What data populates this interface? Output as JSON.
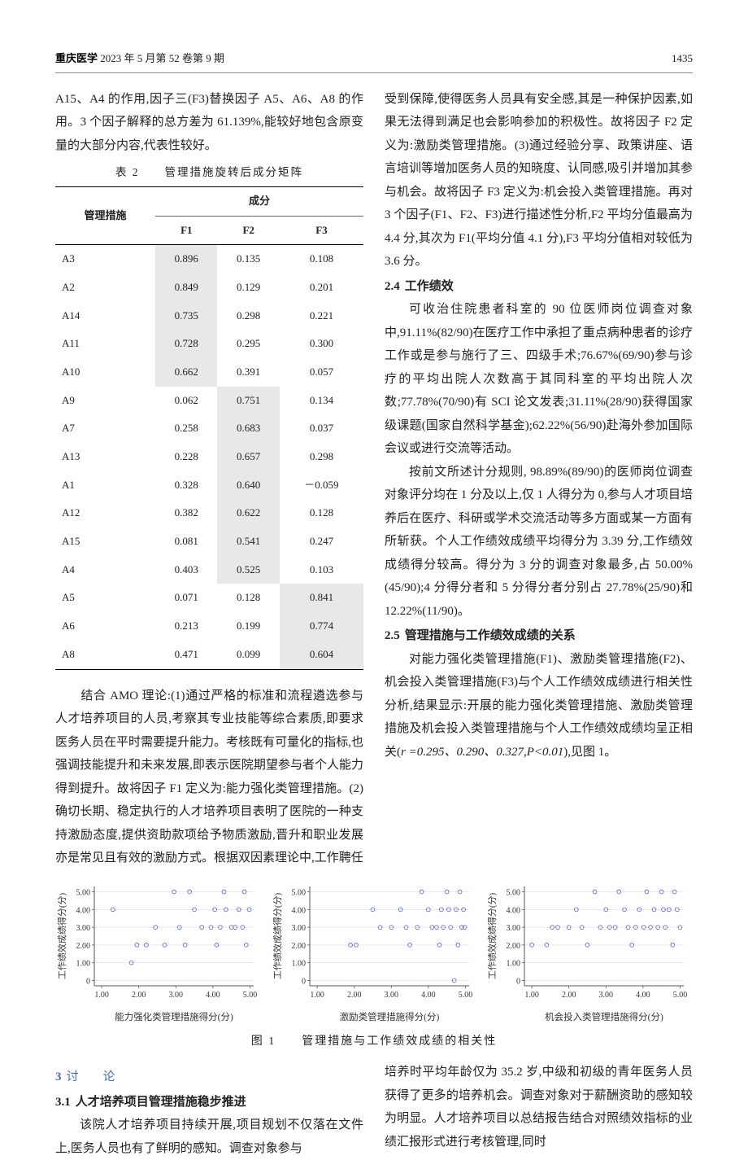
{
  "header": {
    "journal": "重庆医学",
    "issue": "2023 年 5 月第 52 卷第 9 期",
    "page": "1435"
  },
  "leftCol": {
    "intro": "A15、A4 的作用,因子三(F3)替换因子 A5、A6、A8 的作用。3 个因子解释的总方差为 61.139%,能较好地包含原变量的大部分内容,代表性较好。",
    "tableCaption": "表 2　　管理措施旋转后成分矩阵",
    "tableHeaders": {
      "col0": "管理措施",
      "group": "成分",
      "f1": "F1",
      "f2": "F2",
      "f3": "F3"
    },
    "tableRows": [
      {
        "m": "A3",
        "f1": "0.896",
        "f2": "0.135",
        "f3": "0.108",
        "hi": 0
      },
      {
        "m": "A2",
        "f1": "0.849",
        "f2": "0.129",
        "f3": "0.201",
        "hi": 0
      },
      {
        "m": "A14",
        "f1": "0.735",
        "f2": "0.298",
        "f3": "0.221",
        "hi": 0
      },
      {
        "m": "A11",
        "f1": "0.728",
        "f2": "0.295",
        "f3": "0.300",
        "hi": 0
      },
      {
        "m": "A10",
        "f1": "0.662",
        "f2": "0.391",
        "f3": "0.057",
        "hi": 0
      },
      {
        "m": "A9",
        "f1": "0.062",
        "f2": "0.751",
        "f3": "0.134",
        "hi": 1
      },
      {
        "m": "A7",
        "f1": "0.258",
        "f2": "0.683",
        "f3": "0.037",
        "hi": 1
      },
      {
        "m": "A13",
        "f1": "0.228",
        "f2": "0.657",
        "f3": "0.298",
        "hi": 1
      },
      {
        "m": "A1",
        "f1": "0.328",
        "f2": "0.640",
        "f3": "－0.059",
        "hi": 1
      },
      {
        "m": "A12",
        "f1": "0.382",
        "f2": "0.622",
        "f3": "0.128",
        "hi": 1
      },
      {
        "m": "A15",
        "f1": "0.081",
        "f2": "0.541",
        "f3": "0.247",
        "hi": 1
      },
      {
        "m": "A4",
        "f1": "0.403",
        "f2": "0.525",
        "f3": "0.103",
        "hi": 1
      },
      {
        "m": "A5",
        "f1": "0.071",
        "f2": "0.128",
        "f3": "0.841",
        "hi": 2
      },
      {
        "m": "A6",
        "f1": "0.213",
        "f2": "0.199",
        "f3": "0.774",
        "hi": 2
      },
      {
        "m": "A8",
        "f1": "0.471",
        "f2": "0.099",
        "f3": "0.604",
        "hi": 2
      }
    ],
    "para1": "　　结合 AMO 理论:(1)通过严格的标准和流程遴选参与人才培养项目的人员,考察其专业技能等综合素质,即要求医务人员在平时需要提升能力。考核既有可量化的指标,也强调技能提升和未来发展,即表示医院期望参与者个人能力得到提升。故将因子 F1 定义为:能力强化类管理措施。(2)确切长期、稳定执行的人才培养项目表明了医院的一种支持激励态度,提供资助款项给予物质激励,晋升和职业发展亦是常见且有效的激励方式。根据双因素理论中,工作聘任"
  },
  "rightCol": {
    "para1": "受到保障,使得医务人员具有安全感,其是一种保护因素,如果无法得到满足也会影响参加的积极性。故将因子 F2 定义为:激励类管理措施。(3)通过经验分享、政策讲座、语言培训等增加医务人员的知晓度、认同感,吸引并增加其参与机会。故将因子 F3 定义为:机会投入类管理措施。再对 3 个因子(F1、F2、F3)进行描述性分析,F2 平均分值最高为 4.4 分,其次为 F1(平均分值 4.1 分),F3 平均分值相对较低为 3.6 分。",
    "sub24": "2.4　工作绩效",
    "para2": "可收治住院患者科室的 90 位医师岗位调查对象中,91.11%(82/90)在医疗工作中承担了重点病种患者的诊疗工作或是参与施行了三、四级手术;76.67%(69/90)参与诊疗的平均出院人次数高于其同科室的平均出院人次数;77.78%(70/90)有 SCI 论文发表;31.11%(28/90)获得国家级课题(国家自然科学基金);62.22%(56/90)赴海外参加国际会议或进行交流等活动。",
    "para3": "按前文所述计分规则, 98.89%(89/90)的医师岗位调查对象评分均在 1 分及以上,仅 1 人得分为 0,参与人才项目培养后在医疗、科研或学术交流活动等多方面或某一方面有所斩获。个人工作绩效成绩平均得分为 3.39 分,工作绩效成绩得分较高。得分为 3 分的调查对象最多,占 50.00%(45/90);4 分得分者和 5 分得分者分别占 27.78%(25/90)和 12.22%(11/90)。",
    "sub25": "2.5　管理措施与工作绩效成绩的关系",
    "para4a": "对能力强化类管理措施(F1)、激励类管理措施(F2)、机会投入类管理措施(F3)与个人工作绩效成绩进行相关性分析,结果显示:开展的能力强化类管理措施、激励类管理措施及机会投入类管理措施与个人工作绩效成绩均呈正相关(",
    "stats": "r =0.295、0.290、0.327,",
    "pval": "P<0.01",
    "para4b": "),见图 1。"
  },
  "figure": {
    "caption": "图 1　　管理措施与工作绩效成绩的相关性",
    "ylabel": "工作绩效成绩得分(分)",
    "xlabels": [
      "能力强化类管理措施得分(分)",
      "激励类管理措施得分(分)",
      "机会投入类管理措施得分(分)"
    ],
    "yticks": [
      "0",
      "1.00",
      "2.00",
      "3.00",
      "4.00",
      "5.00"
    ],
    "xticks": [
      "1.00",
      "2.00",
      "3.00",
      "4.00",
      "5.00"
    ],
    "marker_color": "#6b6bd6",
    "grid_color": "#dddddd",
    "axis_color": "#555555",
    "bg": "#ffffff",
    "data": [
      {
        "pts": [
          [
            1.3,
            4.0
          ],
          [
            1.8,
            1.0
          ],
          [
            1.95,
            2.0
          ],
          [
            2.2,
            2.0
          ],
          [
            2.45,
            3.0
          ],
          [
            2.7,
            2.0
          ],
          [
            2.95,
            5.0
          ],
          [
            3.1,
            3.0
          ],
          [
            3.25,
            2.0
          ],
          [
            3.37,
            5.0
          ],
          [
            3.5,
            4.0
          ],
          [
            3.7,
            3.0
          ],
          [
            3.95,
            3.0
          ],
          [
            4.05,
            4.0
          ],
          [
            4.1,
            2.0
          ],
          [
            4.2,
            3.0
          ],
          [
            4.3,
            5.0
          ],
          [
            4.35,
            4.0
          ],
          [
            4.5,
            3.0
          ],
          [
            4.6,
            3.0
          ],
          [
            4.7,
            4.0
          ],
          [
            4.8,
            3.0
          ],
          [
            4.85,
            5.0
          ],
          [
            4.9,
            2.0
          ],
          [
            4.98,
            4.0
          ]
        ]
      },
      {
        "pts": [
          [
            1.9,
            2.0
          ],
          [
            2.05,
            2.0
          ],
          [
            2.5,
            4.0
          ],
          [
            2.7,
            3.0
          ],
          [
            3.0,
            3.0
          ],
          [
            3.25,
            4.0
          ],
          [
            3.4,
            3.0
          ],
          [
            3.5,
            2.0
          ],
          [
            3.7,
            3.0
          ],
          [
            3.82,
            5.0
          ],
          [
            4.0,
            4.0
          ],
          [
            4.1,
            3.0
          ],
          [
            4.22,
            3.0
          ],
          [
            4.3,
            2.0
          ],
          [
            4.35,
            4.0
          ],
          [
            4.4,
            3.0
          ],
          [
            4.5,
            5.0
          ],
          [
            4.55,
            4.0
          ],
          [
            4.6,
            3.0
          ],
          [
            4.7,
            0.0
          ],
          [
            4.75,
            4.0
          ],
          [
            4.8,
            2.0
          ],
          [
            4.85,
            5.0
          ],
          [
            4.9,
            3.0
          ],
          [
            4.95,
            4.0
          ],
          [
            4.98,
            3.0
          ]
        ]
      },
      {
        "pts": [
          [
            1.0,
            2.0
          ],
          [
            1.4,
            2.0
          ],
          [
            1.55,
            3.0
          ],
          [
            1.7,
            3.0
          ],
          [
            2.0,
            3.0
          ],
          [
            2.2,
            4.0
          ],
          [
            2.35,
            3.0
          ],
          [
            2.5,
            2.0
          ],
          [
            2.7,
            5.0
          ],
          [
            2.85,
            3.0
          ],
          [
            3.0,
            4.0
          ],
          [
            3.1,
            3.0
          ],
          [
            3.25,
            3.0
          ],
          [
            3.35,
            5.0
          ],
          [
            3.5,
            4.0
          ],
          [
            3.6,
            3.0
          ],
          [
            3.7,
            2.0
          ],
          [
            3.8,
            3.0
          ],
          [
            3.9,
            4.0
          ],
          [
            4.02,
            3.0
          ],
          [
            4.1,
            5.0
          ],
          [
            4.2,
            3.0
          ],
          [
            4.3,
            4.0
          ],
          [
            4.4,
            3.0
          ],
          [
            4.5,
            5.0
          ],
          [
            4.55,
            4.0
          ],
          [
            4.6,
            3.0
          ],
          [
            4.7,
            4.0
          ],
          [
            4.8,
            2.0
          ],
          [
            4.85,
            5.0
          ],
          [
            4.92,
            4.0
          ],
          [
            5.0,
            3.0
          ]
        ]
      }
    ]
  },
  "bottom": {
    "left": {
      "head3": "3　讨　　论",
      "sub31": "3.1　人才培养项目管理措施稳步推进",
      "para": "该院人才培养项目持续开展,项目规划不仅落在文件上,医务人员也有了鲜明的感知。调查对象参与"
    },
    "right": {
      "para": "培养时平均年龄仅为 35.2 岁,中级和初级的青年医务人员获得了更多的培养机会。调查对象对于薪酬资助的感知较为明显。人才培养项目以总结报告结合对照绩效指标的业绩汇报形式进行考核管理,同时"
    }
  }
}
